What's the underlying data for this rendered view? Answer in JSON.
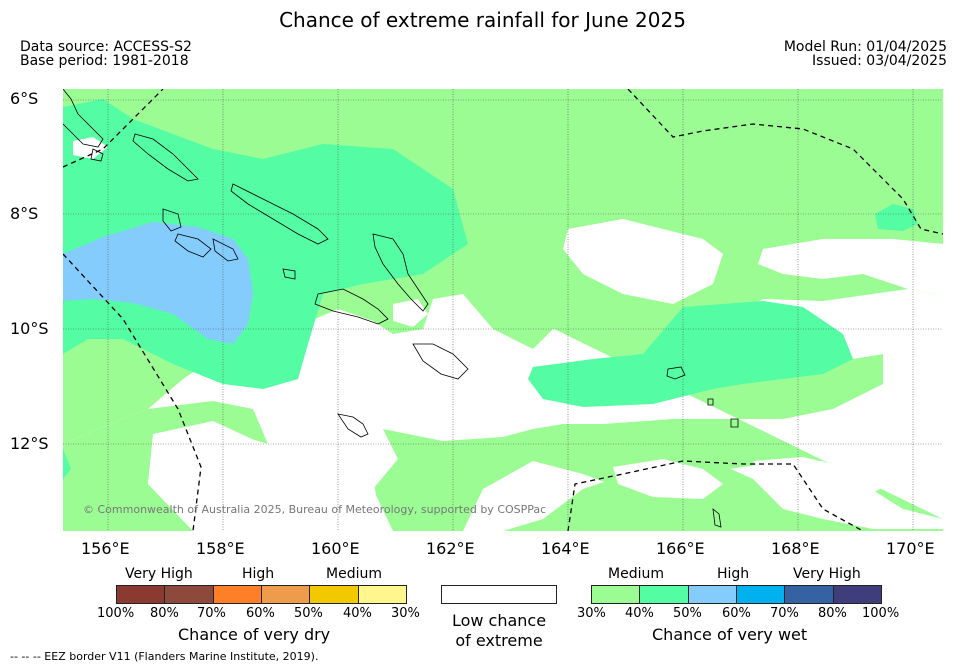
{
  "title": "Chance of extreme rainfall for June 2025",
  "meta": {
    "data_source": "Data source: ACCESS-S2",
    "base_period": "Base period: 1981-2018",
    "model_run": "Model Run: 01/04/2025",
    "issued": "Issued: 03/04/2025"
  },
  "map": {
    "lat_labels": [
      "6°S",
      "8°S",
      "10°S",
      "12°S"
    ],
    "lon_labels": [
      "156°E",
      "158°E",
      "160°E",
      "162°E",
      "164°E",
      "166°E",
      "168°E",
      "170°E"
    ],
    "copyright": "© Commonwealth of Australia 2025, Bureau of Meteorology, supported by COSPPac",
    "colors": {
      "wet_medium_light": "#9cfc94",
      "wet_medium": "#54fca4",
      "wet_high": "#84ccfc",
      "low_chance": "#ffffff"
    }
  },
  "legend": {
    "dry": {
      "headers": [
        "Very High",
        "High",
        "Medium"
      ],
      "ticks": [
        "100%",
        "80%",
        "70%",
        "60%",
        "50%",
        "40%",
        "30%"
      ],
      "colors": [
        "#8b3a32",
        "#8d4a3c",
        "#fe7f27",
        "#ee9c4c",
        "#f2c900",
        "#fff68e"
      ],
      "label": "Chance of very dry"
    },
    "neutral": {
      "label_line1": "Low chance",
      "label_line2": "of extreme"
    },
    "wet": {
      "headers": [
        "Medium",
        "High",
        "Very High"
      ],
      "ticks": [
        "30%",
        "40%",
        "50%",
        "60%",
        "70%",
        "80%",
        "100%"
      ],
      "colors": [
        "#9cfc94",
        "#54fca4",
        "#84ccfc",
        "#00b0ef",
        "#3462a2",
        "#3f3d7c"
      ],
      "label": "Chance of very wet"
    }
  },
  "footnote": "-- -- -- EEZ border V11 (Flanders Marine Institute, 2019)."
}
